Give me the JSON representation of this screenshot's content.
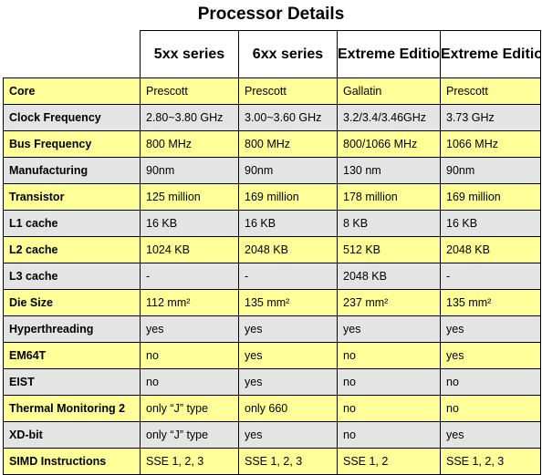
{
  "title": "Processor Details",
  "columns": [
    "5xx series",
    "6xx series",
    "Extreme Edition",
    "Extreme Edition"
  ],
  "rows": [
    {
      "label": "Core",
      "cells": [
        "Prescott",
        "Prescott",
        "Gallatin",
        "Prescott"
      ]
    },
    {
      "label": "Clock Frequency",
      "cells": [
        "2.80~3.80 GHz",
        "3.00~3.60 GHz",
        "3.2/3.4/3.46GHz",
        "3.73 GHz"
      ]
    },
    {
      "label": "Bus Frequency",
      "cells": [
        "800 MHz",
        "800 MHz",
        "800/1066 MHz",
        "1066 MHz"
      ]
    },
    {
      "label": "Manufacturing",
      "cells": [
        "90nm",
        "90nm",
        "130 nm",
        "90nm"
      ]
    },
    {
      "label": "Transistor",
      "cells": [
        "125 million",
        "169 million",
        "178 million",
        "169 million"
      ]
    },
    {
      "label": "L1 cache",
      "cells": [
        "16 KB",
        "16 KB",
        "8 KB",
        "16 KB"
      ]
    },
    {
      "label": "L2 cache",
      "cells": [
        "1024 KB",
        "2048 KB",
        "512 KB",
        "2048 KB"
      ]
    },
    {
      "label": "L3 cache",
      "cells": [
        "-",
        "-",
        "2048 KB",
        "-"
      ]
    },
    {
      "label": "Die Size",
      "cells": [
        "112 mm²",
        "135 mm²",
        "237 mm²",
        "135 mm²"
      ]
    },
    {
      "label": "Hyperthreading",
      "cells": [
        "yes",
        "yes",
        "yes",
        "yes"
      ]
    },
    {
      "label": "EM64T",
      "cells": [
        "no",
        "yes",
        "no",
        "yes"
      ]
    },
    {
      "label": "EIST",
      "cells": [
        "no",
        "yes",
        "no",
        "no"
      ]
    },
    {
      "label": "Thermal Monitoring 2",
      "cells": [
        "only “J” type",
        "only 660",
        "no",
        "no"
      ]
    },
    {
      "label": "XD-bit",
      "cells": [
        "only “J” type",
        "yes",
        "no",
        "yes"
      ]
    },
    {
      "label": "SIMD Instructions",
      "cells": [
        "SSE 1, 2, 3",
        "SSE 1, 2, 3",
        "SSE 1, 2",
        "SSE 1, 2, 3"
      ]
    }
  ],
  "colors": {
    "odd_row": "#ffff99",
    "even_row": "#e4e4e4",
    "border": "#000000"
  }
}
